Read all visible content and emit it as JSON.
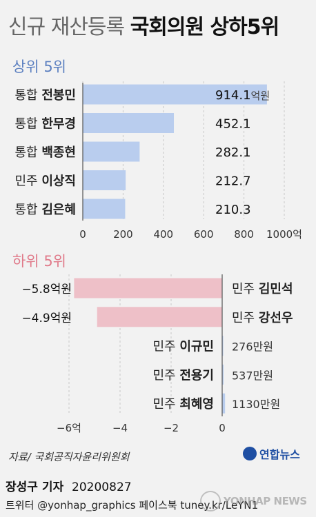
{
  "title": {
    "light": "신규 재산등록",
    "bold": "국회의원 상하5위"
  },
  "chart_data": [
    {
      "type": "bar",
      "orientation": "horizontal",
      "section_label": "상위 5위",
      "categories": [
        {
          "party": "통합",
          "name": "전봉민"
        },
        {
          "party": "통합",
          "name": "한무경"
        },
        {
          "party": "통합",
          "name": "백종현"
        },
        {
          "party": "민주",
          "name": "이상직"
        },
        {
          "party": "통합",
          "name": "김은혜"
        }
      ],
      "values": [
        914.1,
        452.1,
        282.1,
        212.7,
        210.3
      ],
      "value_labels": [
        "914.1",
        "452.1",
        "282.1",
        "212.7",
        "210.3"
      ],
      "first_unit": "억원",
      "xlim": [
        0,
        1000
      ],
      "ticks": [
        "0",
        "200",
        "400",
        "600",
        "800",
        "1000억"
      ],
      "tick_values": [
        0,
        200,
        400,
        600,
        800,
        1000
      ],
      "color": "#b9cdee"
    },
    {
      "type": "bar",
      "orientation": "horizontal",
      "section_label": "하위 5위",
      "categories": [
        {
          "party": "민주",
          "name": "김민석"
        },
        {
          "party": "민주",
          "name": "강선우"
        },
        {
          "party": "민주",
          "name": "이규민"
        },
        {
          "party": "민주",
          "name": "전용기"
        },
        {
          "party": "민주",
          "name": "최혜영"
        }
      ],
      "values": [
        -5.8,
        -4.9,
        0.0276,
        0.0537,
        0.113
      ],
      "value_labels": [
        "−5.8억원",
        "−4.9억원",
        "276만원",
        "537만원",
        "1130만원"
      ],
      "xlim": [
        -6,
        0
      ],
      "ticks": [
        "−6억",
        "−4",
        "−2",
        "0"
      ],
      "tick_values": [
        -6,
        -4,
        -2,
        0
      ],
      "color": "#eec0c8",
      "color_small": "#b9cdee"
    }
  ],
  "source": "자료/ 국회공직자윤리위원회",
  "logo_text": "연합뉴스",
  "footer": {
    "reporter": "장성구 기자",
    "date": "20200827",
    "sns": "트위터 @yonhap_graphics  페이스북 tuney.kr/LeYN1"
  },
  "watermark": "YONHAP NEWS",
  "colors": {
    "top_section": "#5b7fc0",
    "bottom_section": "#e07a8a",
    "background": "#f2f2f2"
  }
}
